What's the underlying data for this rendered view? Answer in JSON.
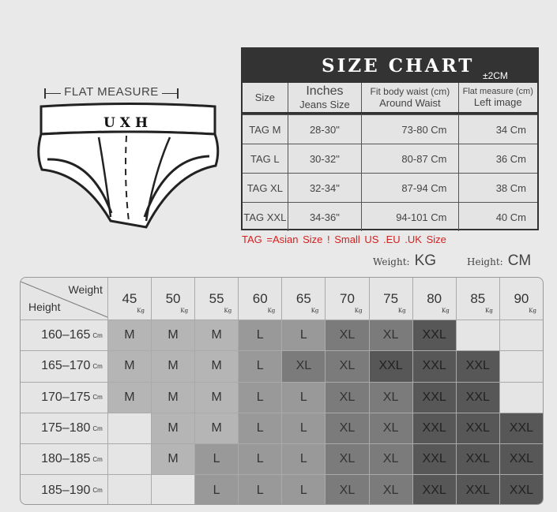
{
  "illustration": {
    "flat_measure": "FLAT MEASURE",
    "brand": "UXH"
  },
  "size_chart": {
    "title": "SIZE CHART",
    "tolerance": "±2CM",
    "headers": [
      [
        "Size",
        ""
      ],
      [
        "Inches",
        "Jeans Size"
      ],
      [
        "Fit body waist (cm)",
        "Around Waist"
      ],
      [
        "Flat measure (cm)",
        "Left image"
      ]
    ],
    "rows": [
      [
        "TAG M",
        "28-30\"",
        "73-80  Cm",
        "34 Cm"
      ],
      [
        "TAG L",
        "30-32\"",
        "80-87  Cm",
        "36 Cm"
      ],
      [
        "TAG XL",
        "32-34\"",
        "87-94  Cm",
        "38 Cm"
      ],
      [
        "TAG XXL",
        "34-36\"",
        "94-101 Cm",
        "40 Cm"
      ]
    ],
    "note": "TAG =Asian Size  !    Small US .EU .UK Size",
    "weight_unit_label": "Weight:",
    "weight_unit": "KG",
    "height_unit_label": "Height:",
    "height_unit": "CM"
  },
  "grid": {
    "corner_weight": "Weight",
    "corner_height": "Height",
    "kg_unit": "Kg",
    "cm_unit": "Cm",
    "weights": [
      "45",
      "50",
      "55",
      "60",
      "65",
      "70",
      "75",
      "80",
      "85",
      "90"
    ],
    "heights": [
      "160–165",
      "165–170",
      "170–175",
      "175–180",
      "180–185",
      "185–190"
    ],
    "cells": [
      [
        "M",
        "M",
        "M",
        "L",
        "L",
        "XL",
        "XL",
        "XXL",
        "",
        ""
      ],
      [
        "M",
        "M",
        "M",
        "L",
        "XL",
        "XL",
        "XXL",
        "XXL",
        "XXL",
        ""
      ],
      [
        "M",
        "M",
        "M",
        "L",
        "L",
        "XL",
        "XL",
        "XXL",
        "XXL",
        ""
      ],
      [
        "",
        "M",
        "M",
        "L",
        "L",
        "XL",
        "XL",
        "XXL",
        "XXL",
        "XXL"
      ],
      [
        "",
        "M",
        "L",
        "L",
        "L",
        "XL",
        "XL",
        "XXL",
        "XXL",
        "XXL"
      ],
      [
        "",
        "",
        "L",
        "L",
        "L",
        "XL",
        "XL",
        "XXL",
        "XXL",
        "XXL"
      ]
    ],
    "colors": {
      "M": "#b5b5b5",
      "L": "#999999",
      "XL": "#7b7b7b",
      "XXL": "#575757",
      "": "#e5e5e5"
    }
  }
}
